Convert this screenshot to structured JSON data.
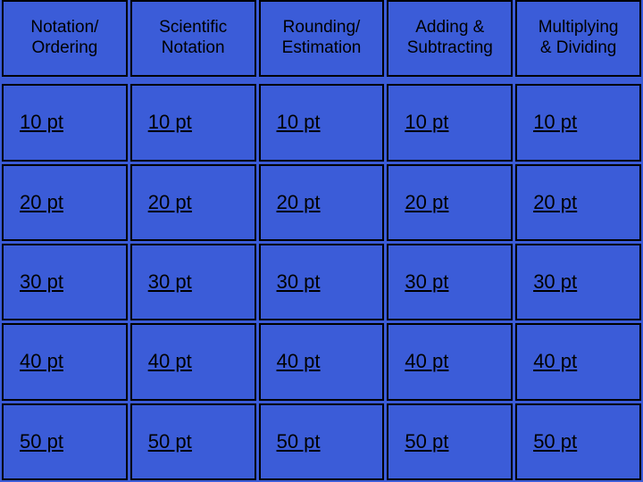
{
  "board": {
    "background_color": "#3b5cd8",
    "border_color": "#000000",
    "text_color": "#000000",
    "header_fontsize": 19,
    "value_fontsize": 22,
    "value_underline": true,
    "columns": 5,
    "rows": 5,
    "categories": [
      "Notation/\nOrdering",
      "Scientific\nNotation",
      "Rounding/\nEstimation",
      "Adding &\nSubtracting",
      "Multiplying\n& Dividing"
    ],
    "point_values": [
      "10 pt",
      "20 pt",
      "30 pt",
      "40 pt",
      "50 pt"
    ],
    "cells": [
      [
        "10 pt",
        "10 pt",
        "10 pt",
        "10 pt",
        "10 pt"
      ],
      [
        "20 pt",
        "20 pt",
        "20 pt",
        "20 pt",
        "20 pt"
      ],
      [
        "30 pt",
        "30 pt",
        "30 pt",
        "30 pt",
        "30 pt"
      ],
      [
        "40 pt",
        "40 pt",
        "40 pt",
        "40 pt",
        "40 pt"
      ],
      [
        "50 pt",
        "50 pt",
        "50 pt",
        "50 pt",
        "50 pt"
      ]
    ]
  }
}
